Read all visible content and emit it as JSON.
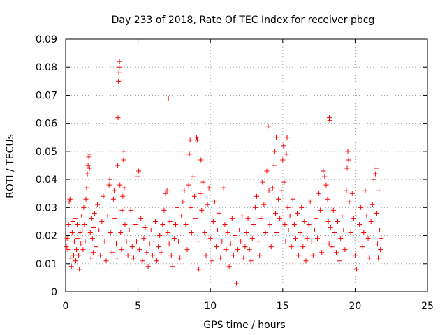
{
  "chart_data": {
    "type": "scatter",
    "title": "Day 233 of 2018, Rate Of TEC Index for receiver pbcg",
    "xlabel": "GPS time / hours",
    "ylabel": "ROTI / TECUs",
    "xlim": [
      0,
      25
    ],
    "ylim": [
      0,
      0.09
    ],
    "xticks": [
      0,
      5,
      10,
      15,
      20,
      25
    ],
    "xtick_labels": [
      "0",
      "5",
      "10",
      "15",
      "20",
      "25"
    ],
    "yticks": [
      0,
      0.01,
      0.02,
      0.03,
      0.04,
      0.05,
      0.06,
      0.07,
      0.08,
      0.09
    ],
    "ytick_labels": [
      "0",
      "0.01",
      "0.02",
      "0.03",
      "0.04",
      "0.05",
      "0.06",
      "0.07",
      "0.08",
      "0.09"
    ],
    "grid": true,
    "marker": "+",
    "marker_color": "#ff0000",
    "series": [
      {
        "name": "ROTI",
        "points": [
          [
            0.05,
            0.016
          ],
          [
            0.1,
            0.019
          ],
          [
            0.15,
            0.015
          ],
          [
            0.2,
            0.024
          ],
          [
            0.25,
            0.032
          ],
          [
            0.3,
            0.033
          ],
          [
            0.35,
            0.012
          ],
          [
            0.4,
            0.009
          ],
          [
            0.45,
            0.021
          ],
          [
            0.5,
            0.025
          ],
          [
            0.55,
            0.013
          ],
          [
            0.6,
            0.018
          ],
          [
            0.65,
            0.026
          ],
          [
            0.7,
            0.011
          ],
          [
            0.75,
            0.015
          ],
          [
            0.8,
            0.024
          ],
          [
            0.85,
            0.019
          ],
          [
            0.9,
            0.013
          ],
          [
            0.95,
            0.008
          ],
          [
            1.0,
            0.021
          ],
          [
            1.05,
            0.017
          ],
          [
            1.1,
            0.027
          ],
          [
            1.15,
            0.022
          ],
          [
            1.2,
            0.015
          ],
          [
            1.25,
            0.03
          ],
          [
            1.3,
            0.024
          ],
          [
            1.35,
            0.018
          ],
          [
            1.4,
            0.033
          ],
          [
            1.45,
            0.037
          ],
          [
            1.5,
            0.042
          ],
          [
            1.55,
            0.045
          ],
          [
            1.6,
            0.048
          ],
          [
            1.62,
            0.049
          ],
          [
            1.65,
            0.044
          ],
          [
            1.7,
            0.021
          ],
          [
            1.75,
            0.012
          ],
          [
            1.8,
            0.026
          ],
          [
            1.85,
            0.019
          ],
          [
            1.9,
            0.014
          ],
          [
            1.95,
            0.023
          ],
          [
            2.0,
            0.028
          ],
          [
            2.1,
            0.016
          ],
          [
            2.2,
            0.031
          ],
          [
            2.3,
            0.022
          ],
          [
            2.4,
            0.013
          ],
          [
            2.5,
            0.025
          ],
          [
            2.6,
            0.034
          ],
          [
            2.7,
            0.018
          ],
          [
            2.8,
            0.011
          ],
          [
            2.9,
            0.027
          ],
          [
            3.0,
            0.038
          ],
          [
            3.05,
            0.04
          ],
          [
            3.1,
            0.021
          ],
          [
            3.2,
            0.014
          ],
          [
            3.3,
            0.033
          ],
          [
            3.35,
            0.036
          ],
          [
            3.4,
            0.026
          ],
          [
            3.5,
            0.017
          ],
          [
            3.55,
            0.012
          ],
          [
            3.6,
            0.045
          ],
          [
            3.62,
            0.062
          ],
          [
            3.65,
            0.075
          ],
          [
            3.68,
            0.078
          ],
          [
            3.7,
            0.08
          ],
          [
            3.72,
            0.082
          ],
          [
            3.75,
            0.038
          ],
          [
            3.8,
            0.021
          ],
          [
            3.85,
            0.015
          ],
          [
            3.9,
            0.029
          ],
          [
            3.95,
            0.034
          ],
          [
            4.0,
            0.047
          ],
          [
            4.02,
            0.05
          ],
          [
            4.05,
            0.037
          ],
          [
            4.1,
            0.024
          ],
          [
            4.2,
            0.018
          ],
          [
            4.3,
            0.013
          ],
          [
            4.4,
            0.022
          ],
          [
            4.5,
            0.029
          ],
          [
            4.6,
            0.016
          ],
          [
            4.7,
            0.012
          ],
          [
            4.8,
            0.024
          ],
          [
            4.9,
            0.018
          ],
          [
            5.0,
            0.041
          ],
          [
            5.05,
            0.043
          ],
          [
            5.1,
            0.015
          ],
          [
            5.2,
            0.026
          ],
          [
            5.3,
            0.011
          ],
          [
            5.4,
            0.019
          ],
          [
            5.5,
            0.023
          ],
          [
            5.6,
            0.014
          ],
          [
            5.7,
            0.009
          ],
          [
            5.8,
            0.017
          ],
          [
            5.9,
            0.022
          ],
          [
            6.0,
            0.013
          ],
          [
            6.1,
            0.018
          ],
          [
            6.2,
            0.025
          ],
          [
            6.3,
            0.011
          ],
          [
            6.4,
            0.016
          ],
          [
            6.5,
            0.02
          ],
          [
            6.6,
            0.014
          ],
          [
            6.7,
            0.024
          ],
          [
            6.8,
            0.029
          ],
          [
            6.9,
            0.035
          ],
          [
            7.0,
            0.036
          ],
          [
            7.05,
            0.021
          ],
          [
            7.1,
            0.069
          ],
          [
            7.15,
            0.017
          ],
          [
            7.2,
            0.025
          ],
          [
            7.3,
            0.013
          ],
          [
            7.4,
            0.009
          ],
          [
            7.5,
            0.019
          ],
          [
            7.6,
            0.024
          ],
          [
            7.7,
            0.03
          ],
          [
            7.8,
            0.018
          ],
          [
            7.9,
            0.012
          ],
          [
            8.0,
            0.027
          ],
          [
            8.1,
            0.032
          ],
          [
            8.2,
            0.036
          ],
          [
            8.3,
            0.024
          ],
          [
            8.4,
            0.015
          ],
          [
            8.5,
            0.038
          ],
          [
            8.55,
            0.049
          ],
          [
            8.6,
            0.054
          ],
          [
            8.65,
            0.03
          ],
          [
            8.7,
            0.021
          ],
          [
            8.8,
            0.041
          ],
          [
            8.9,
            0.034
          ],
          [
            9.0,
            0.026
          ],
          [
            9.05,
            0.055
          ],
          [
            9.1,
            0.054
          ],
          [
            9.15,
            0.018
          ],
          [
            9.2,
            0.008
          ],
          [
            9.3,
            0.035
          ],
          [
            9.35,
            0.047
          ],
          [
            9.4,
            0.029
          ],
          [
            9.5,
            0.039
          ],
          [
            9.6,
            0.021
          ],
          [
            9.7,
            0.013
          ],
          [
            9.8,
            0.031
          ],
          [
            9.9,
            0.037
          ],
          [
            10.0,
            0.019
          ],
          [
            10.1,
            0.011
          ],
          [
            10.2,
            0.025
          ],
          [
            10.3,
            0.032
          ],
          [
            10.4,
            0.016
          ],
          [
            10.5,
            0.022
          ],
          [
            10.6,
            0.028
          ],
          [
            10.7,
            0.012
          ],
          [
            10.8,
            0.018
          ],
          [
            10.9,
            0.037
          ],
          [
            11.0,
            0.024
          ],
          [
            11.1,
            0.015
          ],
          [
            11.2,
            0.021
          ],
          [
            11.3,
            0.009
          ],
          [
            11.4,
            0.017
          ],
          [
            11.5,
            0.026
          ],
          [
            11.6,
            0.013
          ],
          [
            11.7,
            0.02
          ],
          [
            11.8,
            0.003
          ],
          [
            11.9,
            0.015
          ],
          [
            12.0,
            0.022
          ],
          [
            12.1,
            0.018
          ],
          [
            12.2,
            0.027
          ],
          [
            12.3,
            0.012
          ],
          [
            12.4,
            0.016
          ],
          [
            12.5,
            0.021
          ],
          [
            12.6,
            0.026
          ],
          [
            12.7,
            0.015
          ],
          [
            12.8,
            0.011
          ],
          [
            12.9,
            0.019
          ],
          [
            13.0,
            0.024
          ],
          [
            13.1,
            0.03
          ],
          [
            13.2,
            0.034
          ],
          [
            13.3,
            0.018
          ],
          [
            13.4,
            0.013
          ],
          [
            13.5,
            0.026
          ],
          [
            13.6,
            0.039
          ],
          [
            13.7,
            0.031
          ],
          [
            13.8,
            0.021
          ],
          [
            13.9,
            0.043
          ],
          [
            14.0,
            0.059
          ],
          [
            14.05,
            0.036
          ],
          [
            14.1,
            0.024
          ],
          [
            14.2,
            0.016
          ],
          [
            14.3,
            0.037
          ],
          [
            14.4,
            0.045
          ],
          [
            14.45,
            0.05
          ],
          [
            14.5,
            0.028
          ],
          [
            14.55,
            0.055
          ],
          [
            14.6,
            0.021
          ],
          [
            14.7,
            0.033
          ],
          [
            14.8,
            0.026
          ],
          [
            14.9,
            0.036
          ],
          [
            15.0,
            0.047
          ],
          [
            15.05,
            0.052
          ],
          [
            15.1,
            0.039
          ],
          [
            15.15,
            0.024
          ],
          [
            15.2,
            0.018
          ],
          [
            15.25,
            0.049
          ],
          [
            15.3,
            0.055
          ],
          [
            15.35,
            0.03
          ],
          [
            15.4,
            0.022
          ],
          [
            15.5,
            0.027
          ],
          [
            15.6,
            0.016
          ],
          [
            15.7,
            0.033
          ],
          [
            15.8,
            0.024
          ],
          [
            15.9,
            0.019
          ],
          [
            16.0,
            0.028
          ],
          [
            16.1,
            0.013
          ],
          [
            16.2,
            0.021
          ],
          [
            16.3,
            0.03
          ],
          [
            16.4,
            0.016
          ],
          [
            16.5,
            0.025
          ],
          [
            16.6,
            0.011
          ],
          [
            16.7,
            0.019
          ],
          [
            16.8,
            0.024
          ],
          [
            16.9,
            0.032
          ],
          [
            17.0,
            0.018
          ],
          [
            17.1,
            0.013
          ],
          [
            17.2,
            0.022
          ],
          [
            17.3,
            0.026
          ],
          [
            17.4,
            0.019
          ],
          [
            17.5,
            0.035
          ],
          [
            17.6,
            0.029
          ],
          [
            17.7,
            0.014
          ],
          [
            17.8,
            0.043
          ],
          [
            17.9,
            0.041
          ],
          [
            18.0,
            0.038
          ],
          [
            18.1,
            0.033
          ],
          [
            18.15,
            0.025
          ],
          [
            18.2,
            0.017
          ],
          [
            18.22,
            0.062
          ],
          [
            18.25,
            0.061
          ],
          [
            18.3,
            0.023
          ],
          [
            18.4,
            0.016
          ],
          [
            18.5,
            0.029
          ],
          [
            18.6,
            0.021
          ],
          [
            18.7,
            0.014
          ],
          [
            18.8,
            0.025
          ],
          [
            18.9,
            0.011
          ],
          [
            19.0,
            0.019
          ],
          [
            19.1,
            0.027
          ],
          [
            19.2,
            0.022
          ],
          [
            19.3,
            0.015
          ],
          [
            19.4,
            0.036
          ],
          [
            19.45,
            0.044
          ],
          [
            19.5,
            0.05
          ],
          [
            19.55,
            0.047
          ],
          [
            19.6,
            0.032
          ],
          [
            19.7,
            0.021
          ],
          [
            19.8,
            0.035
          ],
          [
            19.9,
            0.026
          ],
          [
            20.0,
            0.013
          ],
          [
            20.1,
            0.008
          ],
          [
            20.2,
            0.018
          ],
          [
            20.3,
            0.024
          ],
          [
            20.4,
            0.03
          ],
          [
            20.5,
            0.016
          ],
          [
            20.6,
            0.021
          ],
          [
            20.7,
            0.036
          ],
          [
            20.8,
            0.027
          ],
          [
            20.9,
            0.019
          ],
          [
            21.0,
            0.012
          ],
          [
            21.1,
            0.025
          ],
          [
            21.2,
            0.031
          ],
          [
            21.3,
            0.04
          ],
          [
            21.4,
            0.042
          ],
          [
            21.45,
            0.044
          ],
          [
            21.5,
            0.028
          ],
          [
            21.55,
            0.017
          ],
          [
            21.6,
            0.012
          ],
          [
            21.65,
            0.036
          ],
          [
            21.7,
            0.022
          ],
          [
            21.75,
            0.015
          ],
          [
            21.8,
            0.019
          ]
        ]
      }
    ]
  }
}
